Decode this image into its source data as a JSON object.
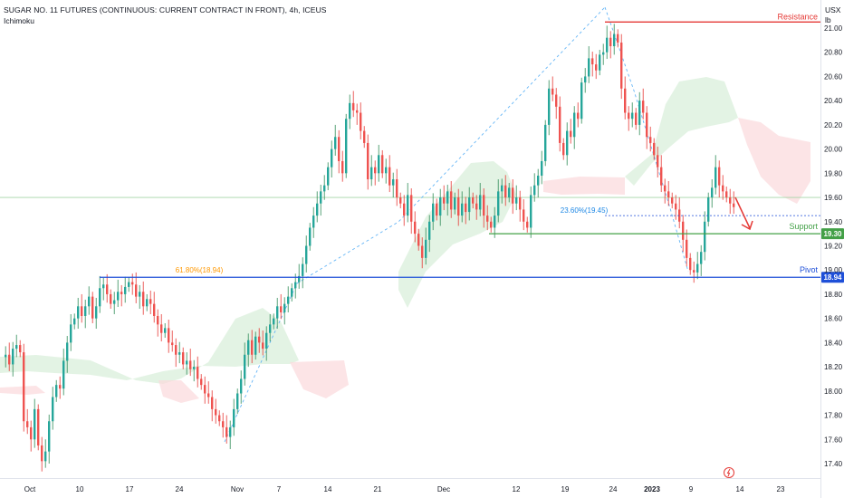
{
  "header": {
    "title": "SUGAR NO. 11 FUTURES (CONTINUOUS: CURRENT CONTRACT IN FRONT), 4h, ICEUS",
    "indicator": "Ichimoku",
    "currency": "USX",
    "unit": "lb"
  },
  "chart_data": {
    "type": "candlestick",
    "title": "SUGAR NO. 11 FUTURES (CONTINUOUS: CURRENT CONTRACT IN FRONT), 4h, ICEUS",
    "ylim": [
      17.33,
      21.1
    ],
    "yticks": [
      "21.00",
      "20.80",
      "20.60",
      "20.40",
      "20.20",
      "20.00",
      "19.80",
      "19.60",
      "19.40",
      "19.20",
      "19.00",
      "18.80",
      "18.60",
      "18.40",
      "18.20",
      "18.00",
      "17.80",
      "17.60",
      "17.40"
    ],
    "xticks": [
      {
        "label": "Oct",
        "bold": false
      },
      {
        "label": "10",
        "bold": false
      },
      {
        "label": "17",
        "bold": false
      },
      {
        "label": "24",
        "bold": false
      },
      {
        "label": "Nov",
        "bold": false
      },
      {
        "label": "7",
        "bold": false
      },
      {
        "label": "14",
        "bold": false
      },
      {
        "label": "21",
        "bold": false
      },
      {
        "label": "Dec",
        "bold": false
      },
      {
        "label": "12",
        "bold": false
      },
      {
        "label": "19",
        "bold": false
      },
      {
        "label": "24",
        "bold": false
      },
      {
        "label": "2023",
        "bold": true
      },
      {
        "label": "9",
        "bold": false
      },
      {
        "label": "14",
        "bold": false
      },
      {
        "label": "23",
        "bold": false
      }
    ],
    "levels": [
      {
        "name": "Resistance",
        "value": 21.05,
        "color": "#e53935",
        "tag": ""
      },
      {
        "name": "Support",
        "value": 19.3,
        "color": "#43a047",
        "tag": "19.30"
      },
      {
        "name": "Pivot",
        "value": 18.94,
        "color": "#1e4fd8",
        "tag": "18.94"
      }
    ],
    "fib_labels": [
      {
        "text": "61.80%(18.94)",
        "value": 18.94
      },
      {
        "text": "23.60%(19.45)",
        "value": 19.45
      }
    ],
    "horizontal_line_value": 19.6,
    "candles_ohlc": "Sampled series; see script for close path",
    "close_path": [
      [
        0,
        18.28
      ],
      [
        3,
        18.3
      ],
      [
        7,
        18.22
      ],
      [
        11,
        18.35
      ],
      [
        15,
        18.38
      ],
      [
        19,
        18.32
      ],
      [
        23,
        17.75
      ],
      [
        27,
        17.7
      ],
      [
        31,
        17.6
      ],
      [
        35,
        17.85
      ],
      [
        39,
        17.55
      ],
      [
        43,
        17.42
      ],
      [
        47,
        17.5
      ],
      [
        51,
        17.75
      ],
      [
        55,
        17.95
      ],
      [
        59,
        18.05
      ],
      [
        63,
        18.02
      ],
      [
        67,
        18.25
      ],
      [
        71,
        18.4
      ],
      [
        75,
        18.55
      ],
      [
        79,
        18.6
      ],
      [
        83,
        18.7
      ],
      [
        87,
        18.62
      ],
      [
        91,
        18.7
      ],
      [
        95,
        18.78
      ],
      [
        99,
        18.6
      ],
      [
        103,
        18.7
      ],
      [
        107,
        18.85
      ],
      [
        111,
        18.88
      ],
      [
        115,
        18.8
      ],
      [
        119,
        18.72
      ],
      [
        123,
        18.75
      ],
      [
        127,
        18.82
      ],
      [
        131,
        18.8
      ],
      [
        135,
        18.86
      ],
      [
        139,
        18.9
      ],
      [
        143,
        18.88
      ],
      [
        147,
        18.78
      ],
      [
        151,
        18.82
      ],
      [
        155,
        18.7
      ],
      [
        159,
        18.76
      ],
      [
        163,
        18.72
      ],
      [
        167,
        18.62
      ],
      [
        171,
        18.55
      ],
      [
        175,
        18.48
      ],
      [
        179,
        18.52
      ],
      [
        183,
        18.4
      ],
      [
        187,
        18.38
      ],
      [
        191,
        18.3
      ],
      [
        195,
        18.32
      ],
      [
        199,
        18.22
      ],
      [
        203,
        18.25
      ],
      [
        207,
        18.18
      ],
      [
        211,
        18.2
      ],
      [
        215,
        18.1
      ],
      [
        219,
        18.05
      ],
      [
        223,
        17.98
      ],
      [
        227,
        17.95
      ],
      [
        231,
        17.85
      ],
      [
        235,
        17.8
      ],
      [
        239,
        17.75
      ],
      [
        243,
        17.7
      ],
      [
        247,
        17.62
      ],
      [
        251,
        17.7
      ],
      [
        255,
        17.85
      ],
      [
        259,
        17.98
      ],
      [
        263,
        18.1
      ],
      [
        267,
        18.3
      ],
      [
        271,
        18.42
      ],
      [
        275,
        18.3
      ],
      [
        279,
        18.45
      ],
      [
        283,
        18.4
      ],
      [
        287,
        18.35
      ],
      [
        291,
        18.48
      ],
      [
        295,
        18.55
      ],
      [
        299,
        18.6
      ],
      [
        303,
        18.7
      ],
      [
        307,
        18.65
      ],
      [
        311,
        18.72
      ],
      [
        315,
        18.78
      ],
      [
        319,
        18.85
      ],
      [
        323,
        18.9
      ],
      [
        327,
        18.95
      ],
      [
        331,
        19.05
      ],
      [
        335,
        19.2
      ],
      [
        339,
        19.35
      ],
      [
        343,
        19.45
      ],
      [
        347,
        19.55
      ],
      [
        351,
        19.65
      ],
      [
        355,
        19.7
      ],
      [
        359,
        19.85
      ],
      [
        363,
        20.0
      ],
      [
        367,
        20.1
      ],
      [
        371,
        19.9
      ],
      [
        375,
        19.8
      ],
      [
        379,
        20.25
      ],
      [
        383,
        20.38
      ],
      [
        387,
        20.32
      ],
      [
        391,
        20.3
      ],
      [
        395,
        20.15
      ],
      [
        399,
        20.05
      ],
      [
        403,
        19.75
      ],
      [
        407,
        19.85
      ],
      [
        411,
        19.8
      ],
      [
        415,
        19.95
      ],
      [
        419,
        19.8
      ],
      [
        423,
        19.85
      ],
      [
        427,
        19.7
      ],
      [
        431,
        19.75
      ],
      [
        435,
        19.6
      ],
      [
        439,
        19.55
      ],
      [
        443,
        19.45
      ],
      [
        447,
        19.62
      ],
      [
        451,
        19.4
      ],
      [
        455,
        19.3
      ],
      [
        459,
        19.2
      ],
      [
        463,
        19.1
      ],
      [
        467,
        19.25
      ],
      [
        471,
        19.4
      ],
      [
        475,
        19.55
      ],
      [
        479,
        19.45
      ],
      [
        483,
        19.6
      ],
      [
        487,
        19.55
      ],
      [
        491,
        19.65
      ],
      [
        495,
        19.5
      ],
      [
        499,
        19.6
      ],
      [
        503,
        19.45
      ],
      [
        507,
        19.55
      ],
      [
        511,
        19.48
      ],
      [
        515,
        19.6
      ],
      [
        519,
        19.55
      ],
      [
        523,
        19.5
      ],
      [
        527,
        19.62
      ],
      [
        531,
        19.45
      ],
      [
        535,
        19.4
      ],
      [
        539,
        19.35
      ],
      [
        543,
        19.45
      ],
      [
        547,
        19.65
      ],
      [
        551,
        19.7
      ],
      [
        555,
        19.6
      ],
      [
        559,
        19.68
      ],
      [
        563,
        19.55
      ],
      [
        567,
        19.6
      ],
      [
        571,
        19.5
      ],
      [
        575,
        19.4
      ],
      [
        579,
        19.35
      ],
      [
        583,
        19.62
      ],
      [
        587,
        19.7
      ],
      [
        591,
        19.78
      ],
      [
        595,
        19.9
      ],
      [
        599,
        20.2
      ],
      [
        603,
        20.5
      ],
      [
        607,
        20.45
      ],
      [
        611,
        20.35
      ],
      [
        615,
        20.05
      ],
      [
        619,
        19.95
      ],
      [
        623,
        20.15
      ],
      [
        627,
        20.1
      ],
      [
        631,
        20.3
      ],
      [
        635,
        20.25
      ],
      [
        639,
        20.55
      ],
      [
        643,
        20.6
      ],
      [
        647,
        20.75
      ],
      [
        651,
        20.7
      ],
      [
        655,
        20.65
      ],
      [
        659,
        20.78
      ],
      [
        663,
        20.8
      ],
      [
        667,
        20.92
      ],
      [
        671,
        20.85
      ],
      [
        675,
        20.95
      ],
      [
        679,
        20.88
      ],
      [
        683,
        20.5
      ],
      [
        687,
        20.3
      ],
      [
        691,
        20.25
      ],
      [
        695,
        20.3
      ],
      [
        699,
        20.2
      ],
      [
        703,
        20.4
      ],
      [
        707,
        20.3
      ],
      [
        711,
        20.1
      ],
      [
        715,
        20.05
      ],
      [
        719,
        19.95
      ],
      [
        723,
        19.85
      ],
      [
        727,
        19.7
      ],
      [
        731,
        19.65
      ],
      [
        735,
        19.6
      ],
      [
        739,
        19.55
      ],
      [
        743,
        19.5
      ],
      [
        747,
        19.4
      ],
      [
        751,
        19.25
      ],
      [
        755,
        19.1
      ],
      [
        759,
        19.0
      ],
      [
        763,
        18.98
      ],
      [
        767,
        19.05
      ],
      [
        771,
        19.15
      ],
      [
        775,
        19.4
      ],
      [
        779,
        19.6
      ],
      [
        783,
        19.68
      ],
      [
        787,
        19.85
      ],
      [
        791,
        19.7
      ],
      [
        795,
        19.65
      ],
      [
        799,
        19.6
      ],
      [
        803,
        19.55
      ],
      [
        807,
        19.52
      ]
    ]
  }
}
